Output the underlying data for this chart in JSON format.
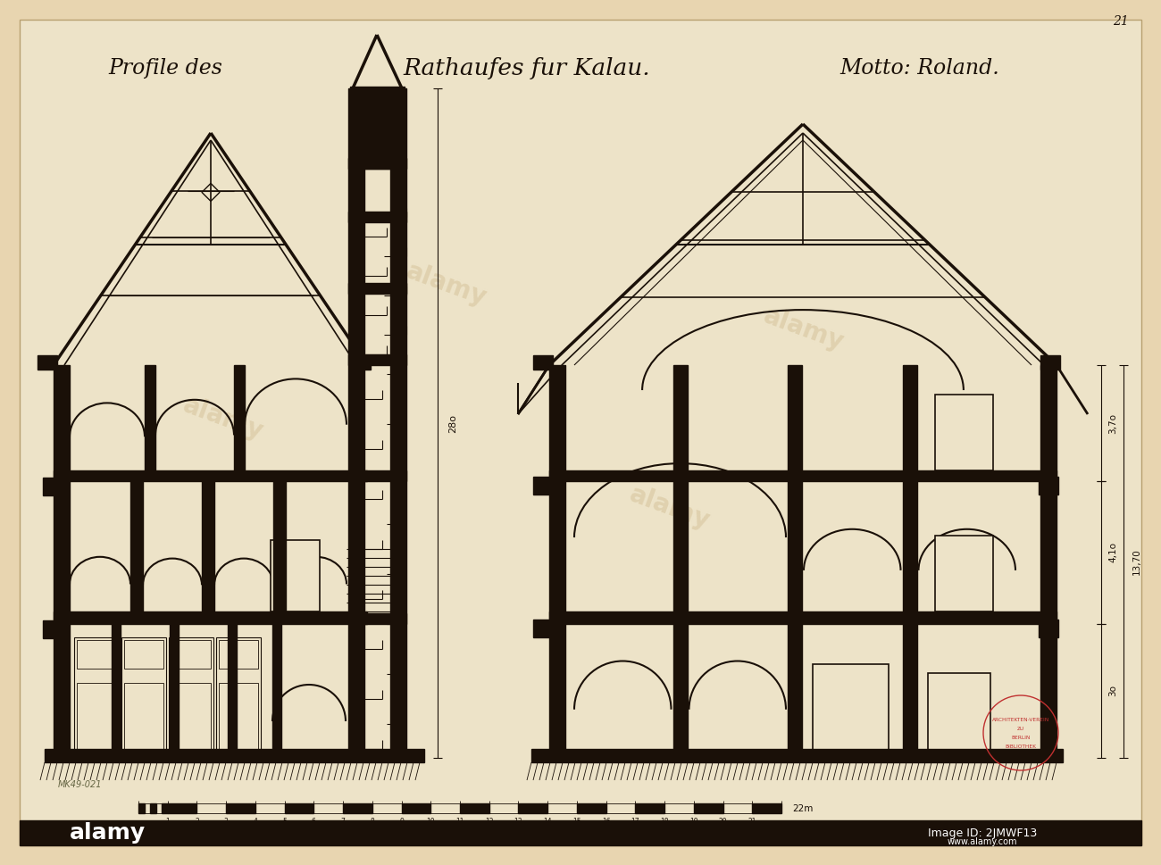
{
  "bg_color": "#e8d5b0",
  "paper_color": "#ede3c8",
  "ink": "#1a1008",
  "stamp_color": "#c03030",
  "title_left": "Profile des",
  "title_center": "Rathaufes fur Kalau.",
  "title_right": "Motto: Roland.",
  "page_num": "21",
  "catalog_ref": "MK49-021",
  "figsize": [
    13.0,
    9.69
  ],
  "dpi": 100
}
